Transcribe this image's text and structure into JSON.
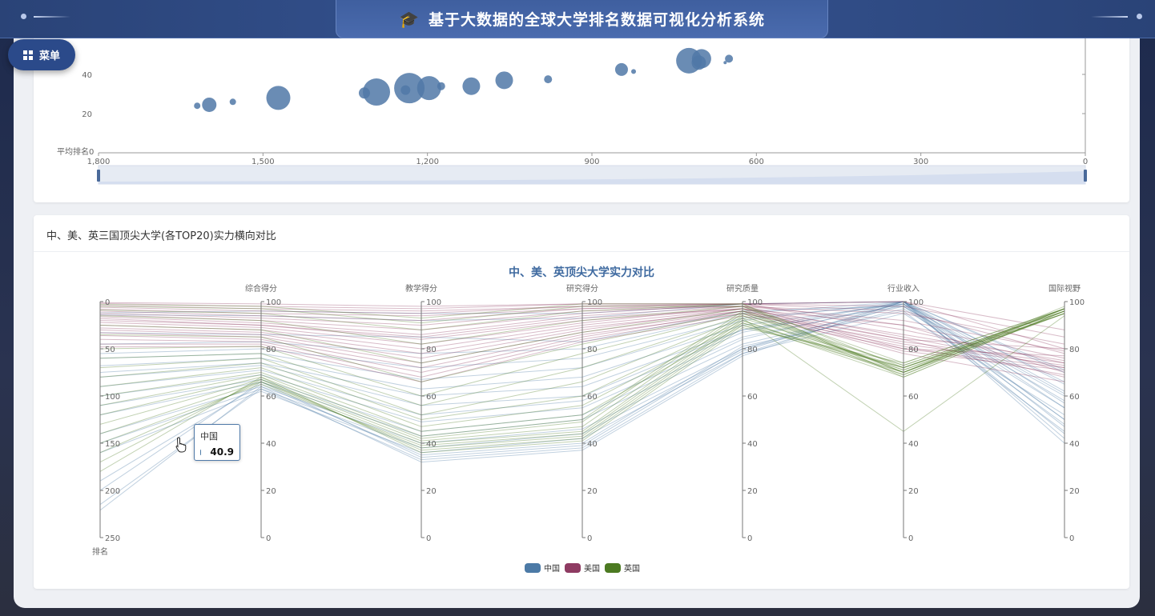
{
  "header": {
    "title": "基于大数据的全球大学排名数据可视化分析系统",
    "menu_label": "菜单"
  },
  "card1": {
    "chart_data": {
      "type": "scatter",
      "y_axis_name": "平均排名",
      "y_ticks": [
        "0",
        "20",
        "40"
      ],
      "x_ticks": [
        "1,800",
        "1,500",
        "1,200",
        "900",
        "600",
        "300",
        "0"
      ],
      "x_inverse": true,
      "xlim": [
        0,
        1800
      ],
      "ylim": [
        0,
        60
      ],
      "points": [
        {
          "x": 1620,
          "y": 24,
          "size": 4
        },
        {
          "x": 1598,
          "y": 24.5,
          "size": 9
        },
        {
          "x": 1555,
          "y": 26,
          "size": 4
        },
        {
          "x": 1472,
          "y": 28,
          "size": 15
        },
        {
          "x": 1315,
          "y": 30.5,
          "size": 7
        },
        {
          "x": 1293,
          "y": 31,
          "size": 17
        },
        {
          "x": 1240,
          "y": 32,
          "size": 6
        },
        {
          "x": 1233,
          "y": 33,
          "size": 19
        },
        {
          "x": 1197,
          "y": 33,
          "size": 15
        },
        {
          "x": 1175,
          "y": 34,
          "size": 5
        },
        {
          "x": 1120,
          "y": 34,
          "size": 11
        },
        {
          "x": 1060,
          "y": 37,
          "size": 11
        },
        {
          "x": 980,
          "y": 37.5,
          "size": 5
        },
        {
          "x": 846,
          "y": 42.5,
          "size": 8
        },
        {
          "x": 824,
          "y": 41.5,
          "size": 3
        },
        {
          "x": 723,
          "y": 47,
          "size": 16
        },
        {
          "x": 705,
          "y": 46,
          "size": 9
        },
        {
          "x": 700,
          "y": 48,
          "size": 12
        },
        {
          "x": 657,
          "y": 46,
          "size": 2
        },
        {
          "x": 650,
          "y": 48,
          "size": 5
        }
      ]
    }
  },
  "card2": {
    "heading": "中、美、英三国顶尖大学(各TOP20)实力横向对比",
    "chart_data": {
      "type": "parallel",
      "title": "中、美、英顶尖大学实力对比",
      "axes": [
        {
          "name": "排名",
          "range": [
            0,
            250
          ],
          "inverse": true,
          "ticks": [
            "0",
            "50",
            "100",
            "150",
            "200",
            "250"
          ]
        },
        {
          "name": "综合得分",
          "range": [
            0,
            100
          ],
          "ticks": [
            "0",
            "20",
            "40",
            "60",
            "80",
            "100"
          ]
        },
        {
          "name": "教学得分",
          "range": [
            0,
            100
          ],
          "ticks": [
            "0",
            "20",
            "40",
            "60",
            "80",
            "100"
          ]
        },
        {
          "name": "研究得分",
          "range": [
            0,
            100
          ],
          "ticks": [
            "0",
            "20",
            "40",
            "60",
            "80",
            "100"
          ]
        },
        {
          "name": "研究质量",
          "range": [
            0,
            100
          ],
          "ticks": [
            "0",
            "20",
            "40",
            "60",
            "80",
            "100"
          ]
        },
        {
          "name": "行业收入",
          "range": [
            0,
            100
          ],
          "ticks": [
            "0",
            "20",
            "40",
            "60",
            "80",
            "100"
          ]
        },
        {
          "name": "国际视野",
          "range": [
            0,
            100
          ],
          "ticks": [
            "0",
            "20",
            "40",
            "60",
            "80",
            "100"
          ]
        }
      ],
      "legend": [
        {
          "name": "中国",
          "color": "#4c7aa6"
        },
        {
          "name": "美国",
          "color": "#8e3b62"
        },
        {
          "name": "英国",
          "color": "#4c7a22"
        }
      ],
      "series": [
        {
          "name": "中国",
          "color": "#4c7aa6",
          "lines": [
            [
              12,
              96,
              95,
              95,
              99,
              100,
              71
            ],
            [
              14,
              94,
              92,
              93,
              99,
              100,
              65
            ],
            [
              33,
              86,
              85,
              83,
              96,
              98,
              60
            ],
            [
              45,
              83,
              78,
              80,
              95,
              100,
              55
            ],
            [
              55,
              80,
              72,
              76,
              93,
              99,
              50
            ],
            [
              60,
              78,
              67,
              72,
              92,
              100,
              47
            ],
            [
              68,
              76,
              63,
              68,
              90,
              99,
              44
            ],
            [
              75,
              74,
              60,
              64,
              88,
              100,
              42
            ],
            [
              80,
              73,
              56,
              60,
              88,
              98,
              58
            ],
            [
              90,
              71,
              52,
              58,
              87,
              100,
              62
            ],
            [
              100,
              69,
              49,
              55,
              85,
              99,
              66
            ],
            [
              110,
              67,
              45,
              52,
              84,
              100,
              70
            ],
            [
              120,
              66,
              43,
              50,
              82,
              98,
              48
            ],
            [
              140,
              64,
              40,
              46,
              80,
              97,
              55
            ],
            [
              150,
              63,
              38,
              44,
              79,
              100,
              40
            ],
            [
              160,
              62,
              36,
              42,
              78,
              95,
              52
            ],
            [
              190,
              65,
              35,
              40,
              81,
              96,
              45
            ],
            [
              200,
              66,
              34,
              39,
              80,
              100,
              57
            ],
            [
              215,
              63,
              33,
              38,
              78,
              99,
              61
            ],
            [
              221,
              64,
              32,
              37,
              77,
              100,
              50
            ]
          ]
        },
        {
          "name": "美国",
          "color": "#8e3b62",
          "lines": [
            [
              1,
              99,
              98,
              99,
              99,
              100,
              88
            ],
            [
              2,
              98,
              97,
              99,
              99,
              98,
              85
            ],
            [
              4,
              97,
              96,
              98,
              99,
              100,
              80
            ],
            [
              6,
              96,
              95,
              98,
              99,
              96,
              78
            ],
            [
              8,
              95,
              94,
              97,
              98,
              95,
              82
            ],
            [
              10,
              94,
              92,
              97,
              99,
              90,
              76
            ],
            [
              12,
              93,
              90,
              96,
              98,
              92,
              79
            ],
            [
              14,
              92,
              88,
              95,
              99,
              88,
              74
            ],
            [
              16,
              91,
              86,
              94,
              98,
              85,
              72
            ],
            [
              18,
              90,
              85,
              93,
              97,
              90,
              70
            ],
            [
              20,
              90,
              84,
              92,
              97,
              84,
              68
            ],
            [
              22,
              89,
              82,
              91,
              98,
              80,
              77
            ],
            [
              25,
              88,
              80,
              90,
              97,
              86,
              75
            ],
            [
              28,
              87,
              78,
              89,
              96,
              82,
              73
            ],
            [
              30,
              86,
              76,
              88,
              97,
              79,
              71
            ],
            [
              33,
              85,
              74,
              87,
              96,
              84,
              80
            ],
            [
              36,
              84,
              72,
              86,
              95,
              81,
              69
            ],
            [
              40,
              83,
              70,
              85,
              96,
              78,
              66
            ],
            [
              45,
              82,
              68,
              84,
              95,
              83,
              74
            ],
            [
              48,
              81,
              66,
              83,
              94,
              80,
              72
            ]
          ]
        },
        {
          "name": "英国",
          "color": "#4c7a22",
          "lines": [
            [
              3,
              98,
              93,
              99,
              99,
              72,
              97
            ],
            [
              5,
              97,
              91,
              98,
              98,
              70,
              98
            ],
            [
              9,
              95,
              88,
              96,
              99,
              68,
              96
            ],
            [
              15,
              92,
              82,
              92,
              98,
              74,
              97
            ],
            [
              25,
              88,
              74,
              87,
              97,
              70,
              95
            ],
            [
              35,
              85,
              66,
              82,
              96,
              73,
              96
            ],
            [
              50,
              81,
              60,
              78,
              95,
              71,
              97
            ],
            [
              60,
              78,
              56,
              72,
              94,
              69,
              96
            ],
            [
              70,
              76,
              52,
              66,
              93,
              72,
              95
            ],
            [
              80,
              74,
              50,
              60,
              92,
              70,
              97
            ],
            [
              90,
              72,
              47,
              56,
              91,
              68,
              96
            ],
            [
              100,
              70,
              45,
              52,
              90,
              72,
              95
            ],
            [
              110,
              69,
              43,
              50,
              96,
              70,
              97
            ],
            [
              120,
              68,
              42,
              49,
              95,
              73,
              96
            ],
            [
              130,
              67,
              41,
              47,
              94,
              71,
              95
            ],
            [
              140,
              66,
              40,
              45,
              93,
              45,
              94
            ],
            [
              150,
              65,
              39,
              44,
              92,
              69,
              97
            ],
            [
              160,
              66,
              38,
              43,
              91,
              72,
              96
            ],
            [
              170,
              67,
              37,
              42,
              90,
              70,
              95
            ],
            [
              180,
              68,
              36,
              41,
              89,
              74,
              97
            ]
          ]
        }
      ]
    },
    "tooltip": {
      "series": "中国",
      "value": "40.9"
    }
  }
}
